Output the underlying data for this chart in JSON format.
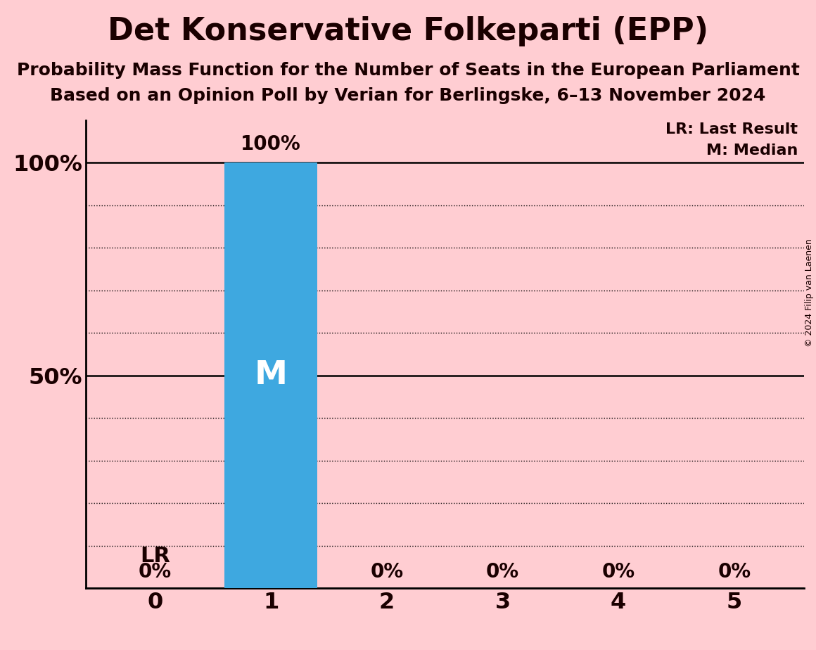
{
  "title": "Det Konservative Folkeparti (EPP)",
  "subtitle1": "Probability Mass Function for the Number of Seats in the European Parliament",
  "subtitle2": "Based on an Opinion Poll by Verian for Berlingske, 6–13 November 2024",
  "copyright": "© 2024 Filip van Laenen",
  "categories": [
    0,
    1,
    2,
    3,
    4,
    5
  ],
  "values": [
    0,
    100,
    0,
    0,
    0,
    0
  ],
  "bar_color": "#3ea8e0",
  "background_color": "#ffcdd2",
  "bar_label_color": "#ffffff",
  "text_color": "#1a0000",
  "median_seat": 1,
  "lr_seat": 0,
  "legend_lr": "LR: Last Result",
  "legend_m": "M: Median",
  "ylim": [
    0,
    110
  ],
  "yticks": [
    0,
    50,
    100
  ],
  "ytick_labels": [
    "",
    "50%",
    "100%"
  ],
  "title_fontsize": 32,
  "subtitle_fontsize": 18,
  "axis_fontsize": 23,
  "bar_label_fontsize": 20,
  "legend_fontsize": 16,
  "annot_fontsize": 22,
  "m_fontsize": 34,
  "copyright_fontsize": 9,
  "dotted_lines": [
    10,
    20,
    30,
    40,
    60,
    70,
    80,
    90
  ],
  "solid_lines": [
    0,
    50,
    100
  ]
}
